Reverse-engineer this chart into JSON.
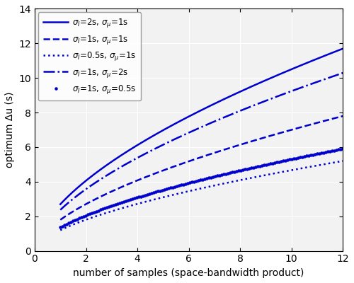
{
  "xlabel": "number of samples (space-bandwidth product)",
  "ylabel": "optimum Δu (s)",
  "xlim": [
    0,
    12
  ],
  "ylim": [
    0,
    14
  ],
  "xticks": [
    0,
    2,
    4,
    6,
    8,
    10,
    12
  ],
  "yticks": [
    0,
    2,
    4,
    6,
    8,
    10,
    12,
    14
  ],
  "line_color": "#0000CD",
  "ax_facecolor": "#f2f2f2",
  "fig_facecolor": "#ffffff",
  "grid_color": "#ffffff",
  "formula_C": 1.8,
  "formula_alpha_I": 0.585,
  "formula_alpha_mu": 0.4,
  "formula_beta_N": 0.59,
  "curves": [
    {
      "label_I": "2",
      "label_mu": "1",
      "linestyle": "solid",
      "linewidth": 1.8,
      "marker": null,
      "markersize": 0,
      "markevery": 1,
      "sigma_I": 2.0,
      "sigma_mu": 1.0
    },
    {
      "label_I": "1",
      "label_mu": "1",
      "linestyle": "dashed",
      "linewidth": 1.8,
      "marker": null,
      "markersize": 0,
      "markevery": 1,
      "sigma_I": 1.0,
      "sigma_mu": 1.0
    },
    {
      "label_I": "0.5",
      "label_mu": "1",
      "linestyle": "dotted",
      "linewidth": 1.8,
      "marker": null,
      "markersize": 0,
      "markevery": 1,
      "sigma_I": 0.5,
      "sigma_mu": 1.0
    },
    {
      "label_I": "1",
      "label_mu": "2",
      "linestyle": "dashdot",
      "linewidth": 1.8,
      "marker": null,
      "markersize": 0,
      "markevery": 1,
      "sigma_I": 1.0,
      "sigma_mu": 2.0
    },
    {
      "label_I": "1",
      "label_mu": "0.5",
      "linestyle": "none",
      "linewidth": 0,
      "marker": ".",
      "markersize": 4.5,
      "markevery": 3,
      "sigma_I": 1.0,
      "sigma_mu": 0.5
    }
  ]
}
